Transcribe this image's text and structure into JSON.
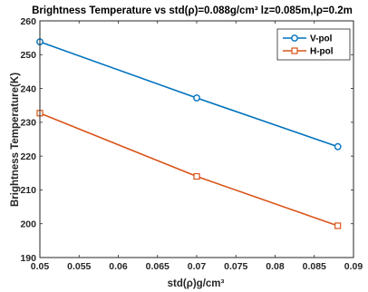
{
  "chart_data": {
    "type": "line",
    "title": "Brightness Temperature vs std(ρ)=0.088g/cm³ lz=0.085m,lρ=0.2m",
    "xlabel": "std(ρ)g/cm³",
    "ylabel": "Brightness Temperature(K)",
    "xlim": [
      0.05,
      0.09
    ],
    "ylim": [
      190,
      260
    ],
    "xticks": [
      0.05,
      0.055,
      0.06,
      0.065,
      0.07,
      0.075,
      0.08,
      0.085,
      0.09
    ],
    "xtick_labels": [
      "0.05",
      "0.055",
      "0.06",
      "0.065",
      "0.07",
      "0.075",
      "0.08",
      "0.085",
      "0.09"
    ],
    "yticks": [
      190,
      200,
      210,
      220,
      230,
      240,
      250,
      260
    ],
    "ytick_labels": [
      "190",
      "200",
      "210",
      "220",
      "230",
      "240",
      "250",
      "260"
    ],
    "grid": false,
    "legend_position": "top-right",
    "series": [
      {
        "name": "V-pol",
        "color": "#0072BD",
        "marker": "circle",
        "x": [
          0.05,
          0.07,
          0.088
        ],
        "y": [
          253.8,
          237.2,
          222.8
        ]
      },
      {
        "name": "H-pol",
        "color": "#D95319",
        "marker": "square",
        "x": [
          0.05,
          0.07,
          0.088
        ],
        "y": [
          232.7,
          214.0,
          199.4
        ]
      }
    ]
  }
}
